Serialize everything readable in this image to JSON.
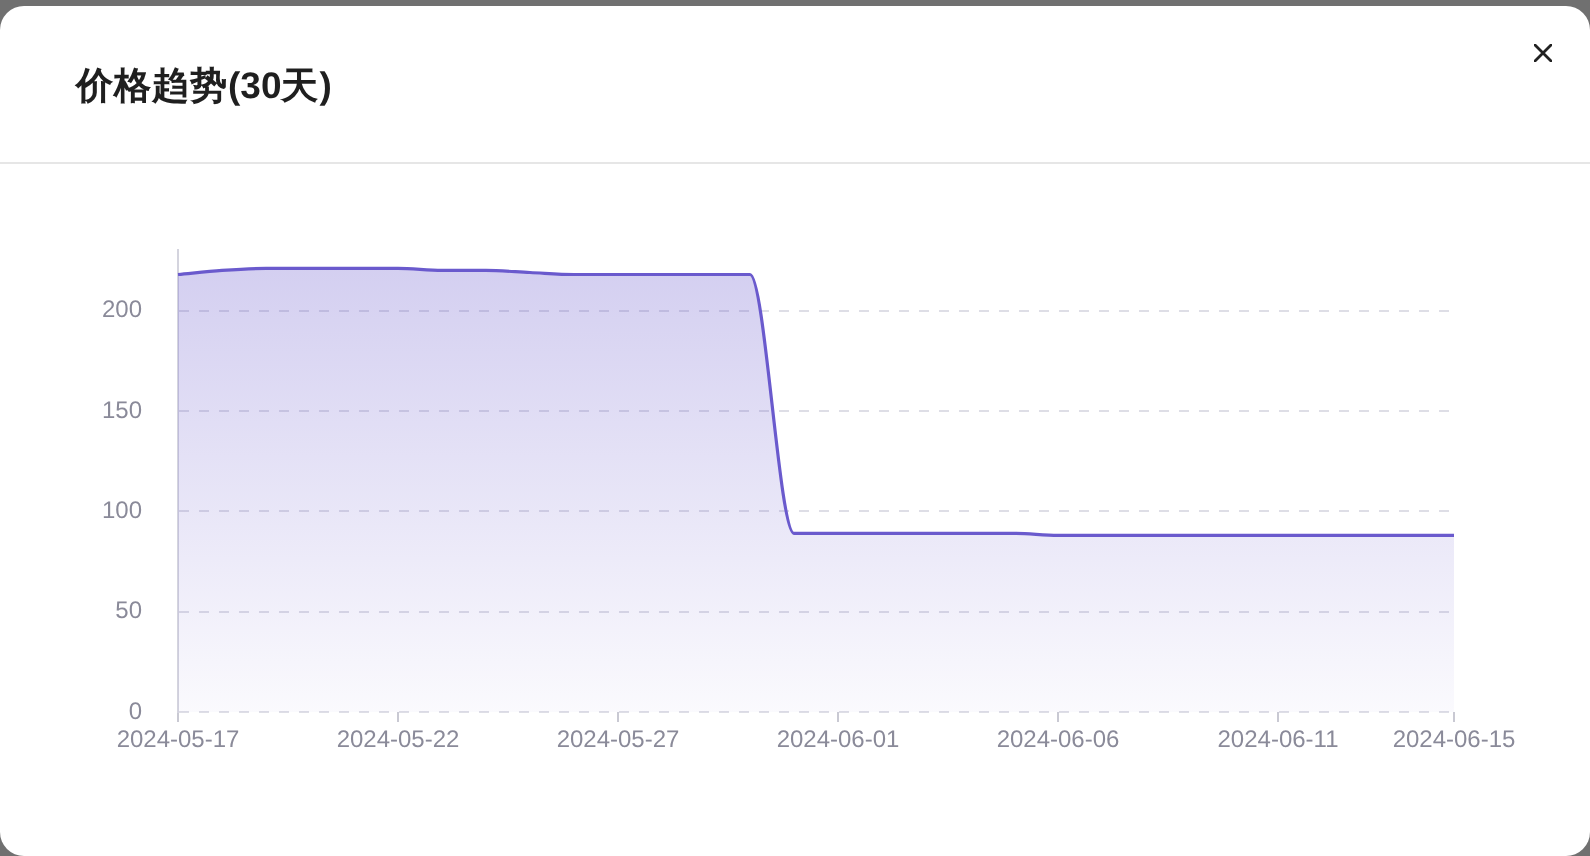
{
  "chart_data": {
    "type": "area",
    "title": "价格趋势(30天)",
    "categories": [
      "2024-05-17",
      null,
      null,
      null,
      null,
      "2024-05-22",
      null,
      null,
      null,
      null,
      "2024-05-27",
      null,
      null,
      null,
      null,
      "2024-06-01",
      null,
      null,
      null,
      null,
      "2024-06-06",
      null,
      null,
      null,
      null,
      "2024-06-11",
      null,
      null,
      null,
      "2024-06-15"
    ],
    "values": [
      218,
      220,
      221,
      221,
      221,
      221,
      220,
      220,
      219,
      218,
      218,
      218,
      218,
      218,
      89,
      89,
      89,
      89,
      89,
      89,
      88,
      88,
      88,
      88,
      88,
      88,
      88,
      88,
      88,
      88
    ],
    "color": "#6a5acd",
    "ylim": [
      0,
      230
    ],
    "yticks": [
      0,
      50,
      100,
      150,
      200
    ],
    "grid": "y"
  }
}
